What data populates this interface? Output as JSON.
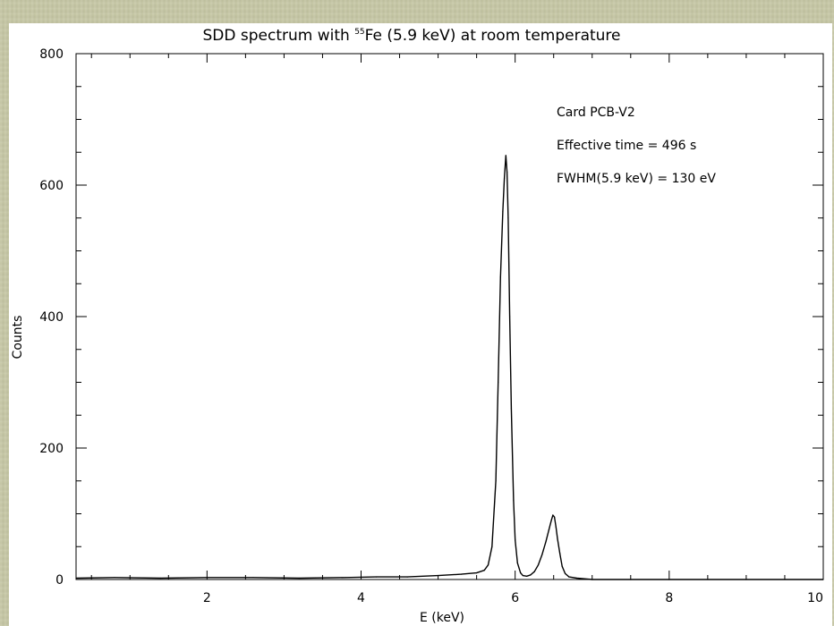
{
  "chart_data": {
    "type": "line",
    "title_prefix": "SDD spectrum with ",
    "title_superscript": "55",
    "title_suffix": "Fe (5.9 keV) at room temperature",
    "xlabel": "E (keV)",
    "ylabel": "Counts",
    "xlim": [
      0.3,
      10
    ],
    "ylim": [
      0,
      800
    ],
    "x_ticks": [
      2,
      4,
      6,
      8,
      10
    ],
    "y_ticks": [
      0,
      200,
      400,
      600,
      800
    ],
    "grid": false,
    "annotations": [
      "Card PCB-V2",
      "Effective time = 496 s",
      "FWHM(5.9 keV) = 130 eV"
    ],
    "series": [
      {
        "x": [
          0.3,
          0.8,
          1.4,
          2.0,
          2.6,
          3.2,
          3.8,
          4.2,
          4.6,
          5.0,
          5.3,
          5.5,
          5.6,
          5.65,
          5.7,
          5.75,
          5.78,
          5.81,
          5.84,
          5.86,
          5.88,
          5.895,
          5.91,
          5.93,
          5.95,
          5.98,
          6.0,
          6.03,
          6.07,
          6.1,
          6.15,
          6.2,
          6.25,
          6.3,
          6.35,
          6.4,
          6.44,
          6.47,
          6.49,
          6.51,
          6.53,
          6.55,
          6.58,
          6.61,
          6.65,
          6.7,
          6.8,
          7.0,
          7.5,
          8.0,
          9.0,
          10.0
        ],
        "values": [
          2,
          3,
          2,
          3,
          3,
          2,
          3,
          4,
          4,
          6,
          8,
          10,
          14,
          22,
          50,
          150,
          300,
          460,
          560,
          610,
          645,
          620,
          550,
          400,
          260,
          120,
          60,
          25,
          10,
          6,
          5,
          7,
          12,
          22,
          38,
          58,
          76,
          90,
          98,
          95,
          80,
          62,
          40,
          20,
          9,
          4,
          2,
          0,
          0,
          0,
          0,
          0
        ]
      }
    ]
  }
}
